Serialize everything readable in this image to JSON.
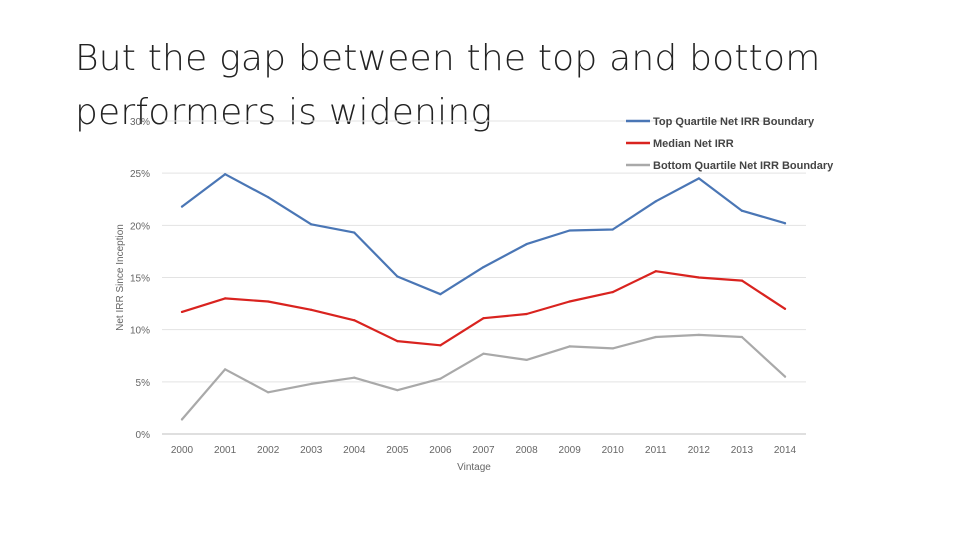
{
  "slide": {
    "title": "But the gap between the top and bottom performers is widening"
  },
  "chart_data": {
    "type": "line",
    "title": "",
    "xlabel": "Vintage",
    "ylabel": "Net IRR Since Inception",
    "x": [
      "2000",
      "2001",
      "2002",
      "2003",
      "2004",
      "2005",
      "2006",
      "2007",
      "2008",
      "2009",
      "2010",
      "2011",
      "2012",
      "2013",
      "2014"
    ],
    "ylim": [
      0,
      30
    ],
    "yticks": [
      "0%",
      "5%",
      "10%",
      "15%",
      "20%",
      "25%",
      "30%"
    ],
    "grid": true,
    "legend_position": "top-right",
    "series": [
      {
        "name": "Top Quartile Net IRR Boundary",
        "color": "#4a76b5",
        "values": [
          21.8,
          24.9,
          22.7,
          20.1,
          19.3,
          15.1,
          13.4,
          16.0,
          18.2,
          19.5,
          19.6,
          22.3,
          24.5,
          21.4,
          20.2
        ]
      },
      {
        "name": "Median Net IRR",
        "color": "#d9231f",
        "values": [
          11.7,
          13.0,
          12.7,
          11.9,
          10.9,
          8.9,
          8.5,
          11.1,
          11.5,
          12.7,
          13.6,
          15.6,
          15.0,
          14.7,
          12.0
        ]
      },
      {
        "name": "Bottom Quartile Net IRR Boundary",
        "color": "#a9a9a9",
        "values": [
          1.4,
          6.2,
          4.0,
          4.8,
          5.4,
          4.2,
          5.3,
          7.7,
          7.1,
          8.4,
          8.2,
          9.3,
          9.5,
          9.3,
          5.5
        ]
      }
    ]
  }
}
